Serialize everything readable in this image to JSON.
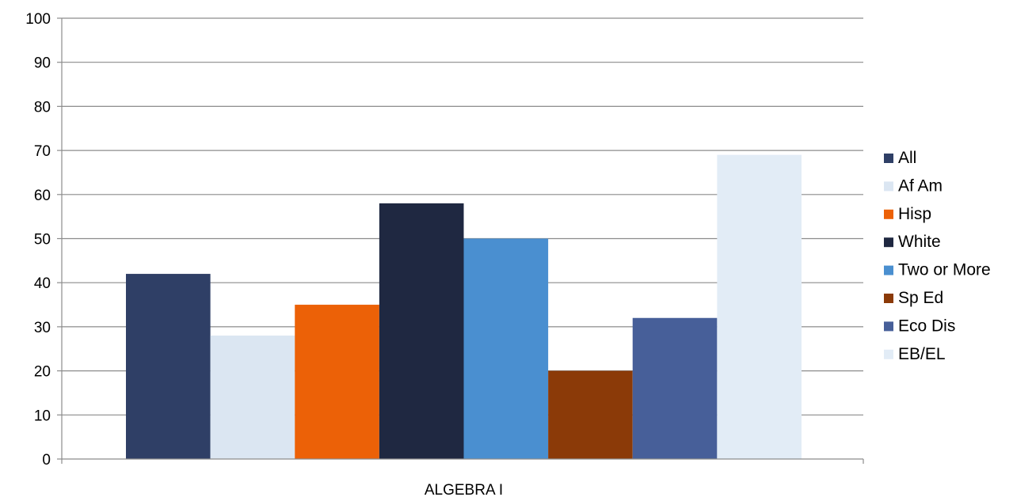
{
  "chart_data": {
    "type": "bar",
    "categories": [
      "ALGEBRA I"
    ],
    "series": [
      {
        "name": "All",
        "values": [
          42
        ],
        "color": "#2f3f66"
      },
      {
        "name": "Af Am",
        "values": [
          28
        ],
        "color": "#dbe6f2"
      },
      {
        "name": "Hisp",
        "values": [
          35
        ],
        "color": "#ec6107"
      },
      {
        "name": "White",
        "values": [
          58
        ],
        "color": "#1f2841"
      },
      {
        "name": "Two or More",
        "values": [
          50
        ],
        "color": "#4a8fd0"
      },
      {
        "name": "Sp Ed",
        "values": [
          20
        ],
        "color": "#8b3a08"
      },
      {
        "name": "Eco Dis",
        "values": [
          32
        ],
        "color": "#475f99"
      },
      {
        "name": "EB/EL",
        "values": [
          69
        ],
        "color": "#e2ecf6"
      }
    ],
    "ylim": [
      0,
      100
    ],
    "yticks": [
      0,
      10,
      20,
      30,
      40,
      50,
      60,
      70,
      80,
      90,
      100
    ],
    "grid": true,
    "legend": "right"
  }
}
